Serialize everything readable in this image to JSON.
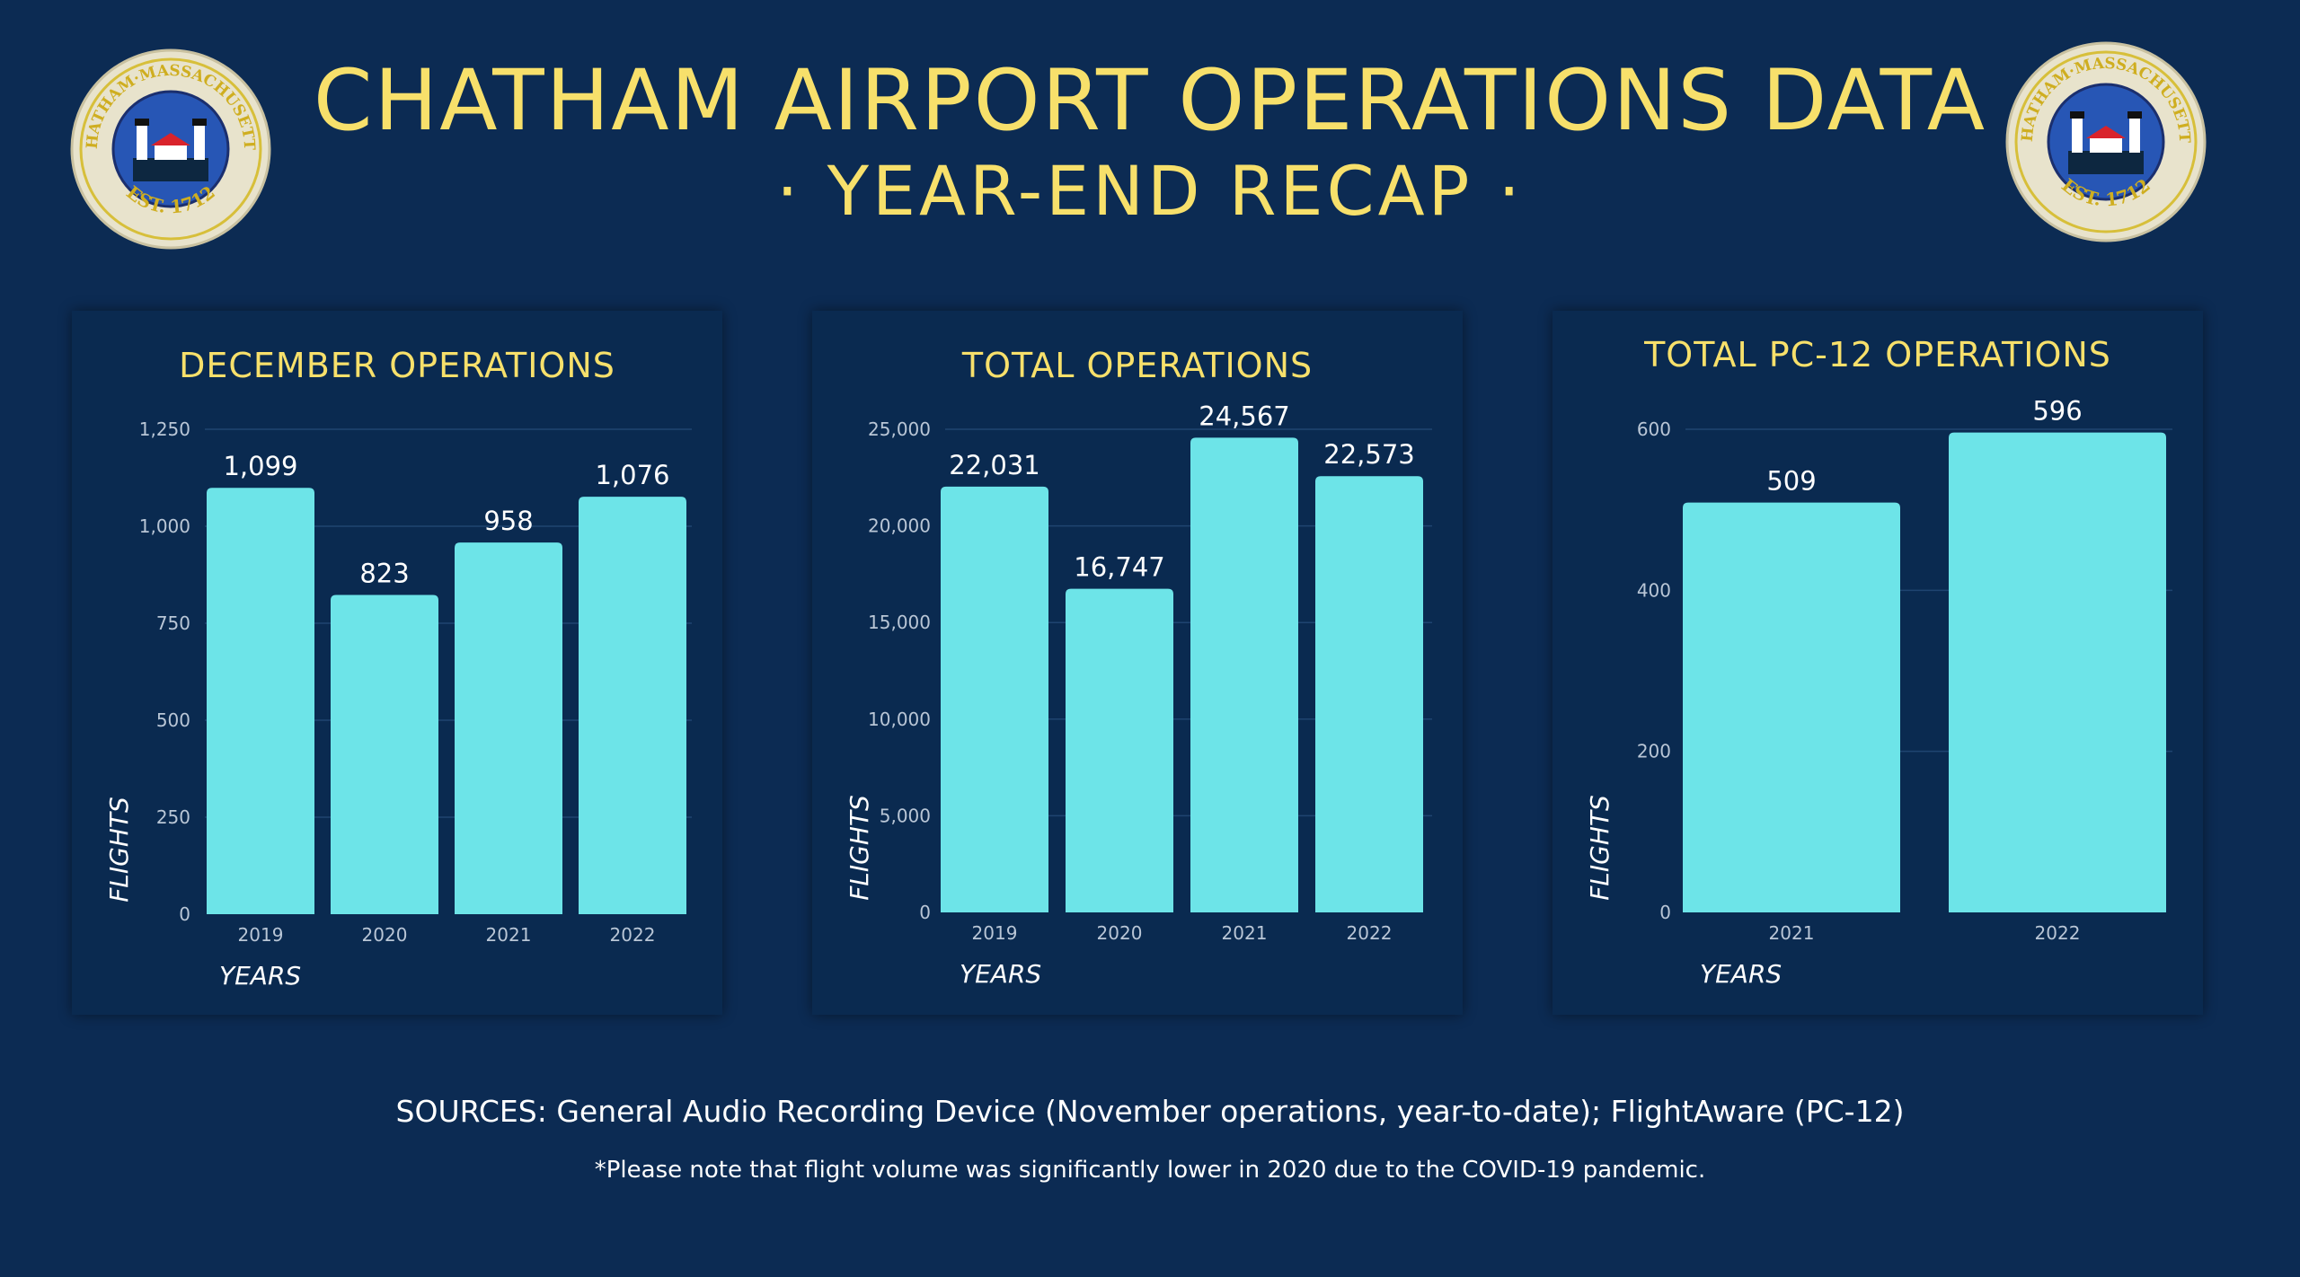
{
  "header": {
    "title": "CHATHAM AIRPORT OPERATIONS DATA",
    "subtitle": "· YEAR-END RECAP ·",
    "seal_text_top": "CHATHAM·MASSACHUSETTS",
    "seal_text_bottom": "EST. 1712"
  },
  "colors": {
    "background": "#0c2b53",
    "panel": "#0a2a50",
    "bar": "#6de4e8",
    "title": "#f7e06b",
    "grid": "#1f4470",
    "tick_text": "#b9c6d6"
  },
  "chart_data": [
    {
      "type": "bar",
      "title": "DECEMBER OPERATIONS",
      "categories": [
        "2019",
        "2020",
        "2021",
        "2022"
      ],
      "values": [
        1099,
        823,
        958,
        1076
      ],
      "value_labels": [
        "1,099",
        "823",
        "958",
        "1,076"
      ],
      "xlabel": "YEARS",
      "ylabel": "FLIGHTS",
      "ylim": [
        0,
        1250
      ],
      "yticks": [
        0,
        250,
        500,
        750,
        1000,
        1250
      ],
      "ytick_labels": [
        "0",
        "250",
        "500",
        "750",
        "1,000",
        "1,250"
      ],
      "grid": true
    },
    {
      "type": "bar",
      "title": "TOTAL OPERATIONS",
      "categories": [
        "2019",
        "2020",
        "2021",
        "2022"
      ],
      "values": [
        22031,
        16747,
        24567,
        22573
      ],
      "value_labels": [
        "22,031",
        "16,747",
        "24,567",
        "22,573"
      ],
      "xlabel": "YEARS",
      "ylabel": "FLIGHTS",
      "ylim": [
        0,
        25000
      ],
      "yticks": [
        0,
        5000,
        10000,
        15000,
        20000,
        25000
      ],
      "ytick_labels": [
        "0",
        "5,000",
        "10,000",
        "15,000",
        "20,000",
        "25,000"
      ],
      "grid": true
    },
    {
      "type": "bar",
      "title": "TOTAL PC-12 OPERATIONS",
      "categories": [
        "2021",
        "2022"
      ],
      "values": [
        509,
        596
      ],
      "value_labels": [
        "509",
        "596"
      ],
      "xlabel": "YEARS",
      "ylabel": "FLIGHTS",
      "ylim": [
        0,
        600
      ],
      "yticks": [
        0,
        200,
        400,
        600
      ],
      "ytick_labels": [
        "0",
        "200",
        "400",
        "600"
      ],
      "grid": true
    }
  ],
  "footer": {
    "sources": "SOURCES: General Audio Recording Device (November operations, year-to-date); FlightAware (PC-12)",
    "note": "*Please note that flight volume was significantly lower in 2020 due to the COVID-19 pandemic."
  }
}
